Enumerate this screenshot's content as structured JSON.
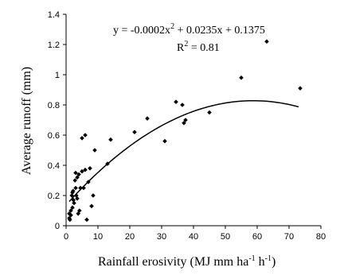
{
  "chart_data": {
    "type": "scatter",
    "xlabel_parts": {
      "text": "Rainfall erosivity (MJ mm ha",
      "sup1": "-1",
      "mid": " h",
      "sup2": "-1",
      "end": ")"
    },
    "ylabel": "Average runoff (mm)",
    "xlim": [
      0,
      80
    ],
    "ylim": [
      0,
      1.4
    ],
    "x_ticks": [
      "0",
      "10",
      "20",
      "30",
      "40",
      "50",
      "60",
      "70",
      "80"
    ],
    "y_ticks": [
      "0",
      "0.2",
      "0.4",
      "0.6",
      "0.8",
      "1",
      "1.2",
      "1.4"
    ],
    "grid": false,
    "equation_parts": {
      "a": "y = -0.0002x",
      "sup": "2",
      "b": " + 0.0235x + 0.1375"
    },
    "r2_parts": {
      "a": "R",
      "sup": "2",
      "b": " = 0.81"
    },
    "trendline": {
      "a": -0.0002,
      "b": 0.0235,
      "c": 0.1375,
      "x_range": [
        1,
        73
      ]
    },
    "points": [
      [
        1.0,
        0.05
      ],
      [
        1.0,
        0.08
      ],
      [
        1.2,
        0.04
      ],
      [
        1.5,
        0.1
      ],
      [
        1.5,
        0.07
      ],
      [
        1.8,
        0.2
      ],
      [
        2.0,
        0.12
      ],
      [
        2.0,
        0.22
      ],
      [
        2.2,
        0.23
      ],
      [
        2.3,
        0.17
      ],
      [
        2.5,
        0.15
      ],
      [
        2.8,
        0.3
      ],
      [
        3.0,
        0.35
      ],
      [
        3.0,
        0.25
      ],
      [
        3.2,
        0.2
      ],
      [
        3.5,
        0.18
      ],
      [
        3.5,
        0.32
      ],
      [
        3.8,
        0.08
      ],
      [
        4.0,
        0.34
      ],
      [
        4.2,
        0.1
      ],
      [
        4.5,
        0.25
      ],
      [
        5.0,
        0.58
      ],
      [
        5.0,
        0.36
      ],
      [
        5.5,
        0.25
      ],
      [
        6.0,
        0.6
      ],
      [
        6.0,
        0.37
      ],
      [
        6.5,
        0.04
      ],
      [
        7.0,
        0.29
      ],
      [
        7.5,
        0.38
      ],
      [
        8.0,
        0.13
      ],
      [
        8.5,
        0.2
      ],
      [
        9.0,
        0.5
      ],
      [
        13.0,
        0.41
      ],
      [
        14.0,
        0.57
      ],
      [
        21.5,
        0.62
      ],
      [
        25.5,
        0.71
      ],
      [
        31.0,
        0.56
      ],
      [
        34.5,
        0.82
      ],
      [
        36.5,
        0.8
      ],
      [
        37.0,
        0.68
      ],
      [
        37.5,
        0.7
      ],
      [
        45.0,
        0.75
      ],
      [
        55.0,
        0.98
      ],
      [
        63.0,
        1.22
      ],
      [
        73.5,
        0.91
      ]
    ]
  }
}
